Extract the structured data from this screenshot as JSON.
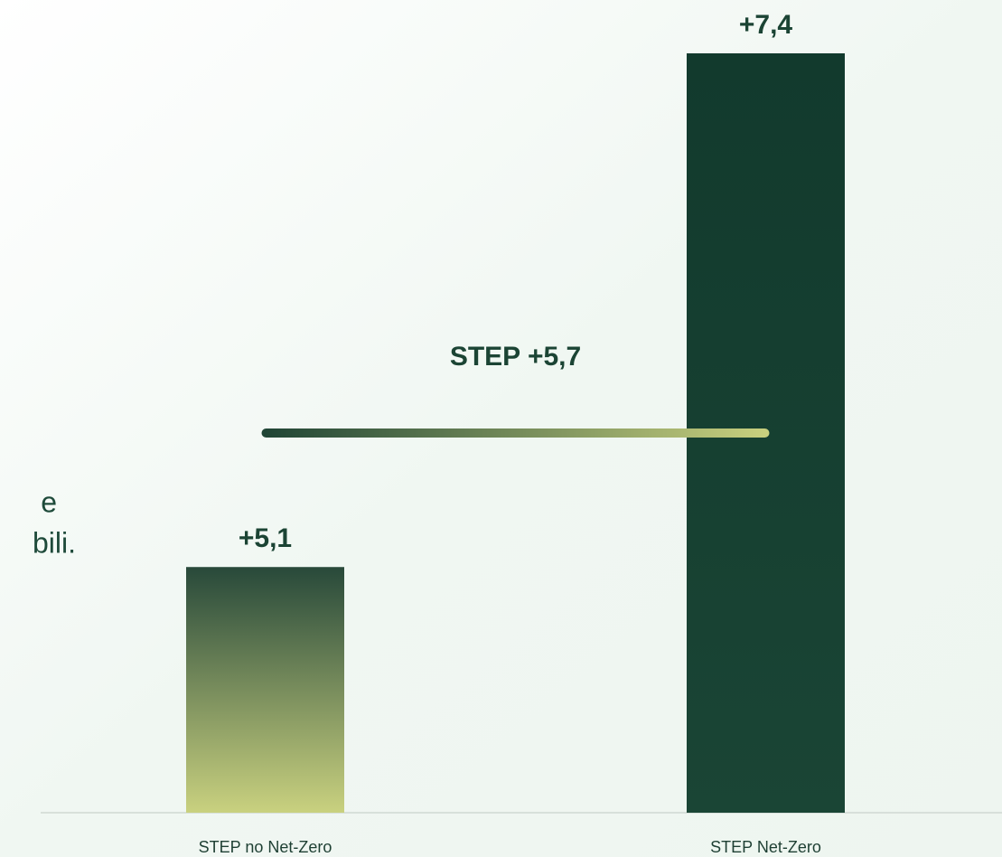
{
  "chart_data": {
    "type": "bar",
    "side_text": [
      "e",
      "bili."
    ],
    "categories": [
      "STEP no Net-Zero",
      "STEP Net-Zero"
    ],
    "values": [
      5.1,
      7.4
    ],
    "value_labels": [
      "+5,1",
      "+7,4"
    ],
    "colors": [
      [
        "#28493a",
        "#c9d17f"
      ],
      [
        "#123a2d",
        "#1a4535"
      ]
    ],
    "ylim": [
      4,
      7.4
    ],
    "reference_lines": [
      {
        "value": 5.7,
        "label": "STEP +5,7",
        "colors": [
          "#1f4435",
          "#c9d17f"
        ]
      }
    ]
  }
}
